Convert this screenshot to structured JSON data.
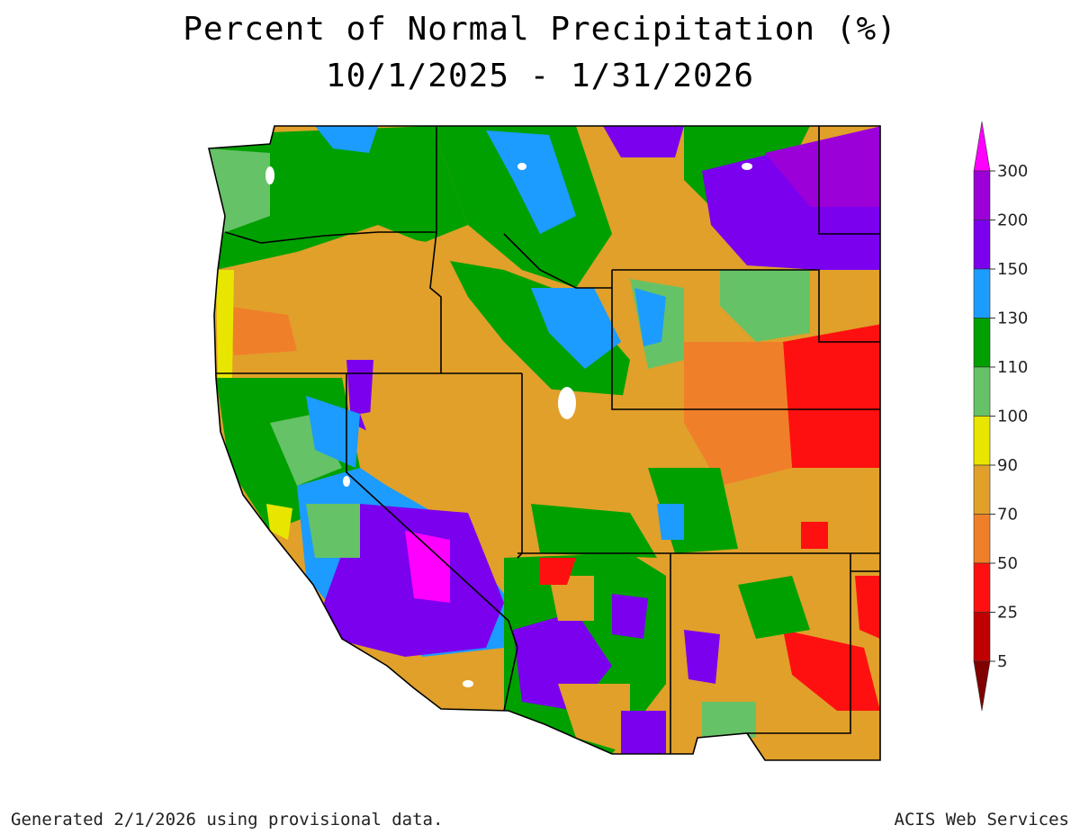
{
  "title": {
    "line1": "Percent of Normal Precipitation (%)",
    "line2": "10/1/2025 - 1/31/2026"
  },
  "legend": {
    "ticks": [
      "300",
      "200",
      "150",
      "130",
      "110",
      "100",
      "90",
      "70",
      "50",
      "25",
      "5"
    ],
    "colors": [
      {
        "range": ">300",
        "color": "#ff00ff"
      },
      {
        "range": "200-300",
        "color": "#9b00d9"
      },
      {
        "range": "150-200",
        "color": "#7a00ee"
      },
      {
        "range": "130-150",
        "color": "#1c9cff"
      },
      {
        "range": "110-130",
        "color": "#00a000"
      },
      {
        "range": "100-110",
        "color": "#66c266"
      },
      {
        "range": "90-100",
        "color": "#e8e600"
      },
      {
        "range": "70-90",
        "color": "#e0a02a"
      },
      {
        "range": "50-70",
        "color": "#f07f2a"
      },
      {
        "range": "25-50",
        "color": "#ff1010"
      },
      {
        "range": "5-25",
        "color": "#c00000"
      },
      {
        "range": "<5",
        "color": "#800000"
      }
    ]
  },
  "footer": {
    "left": "Generated 2/1/2026 using provisional data.",
    "right": "ACIS Web Services"
  }
}
